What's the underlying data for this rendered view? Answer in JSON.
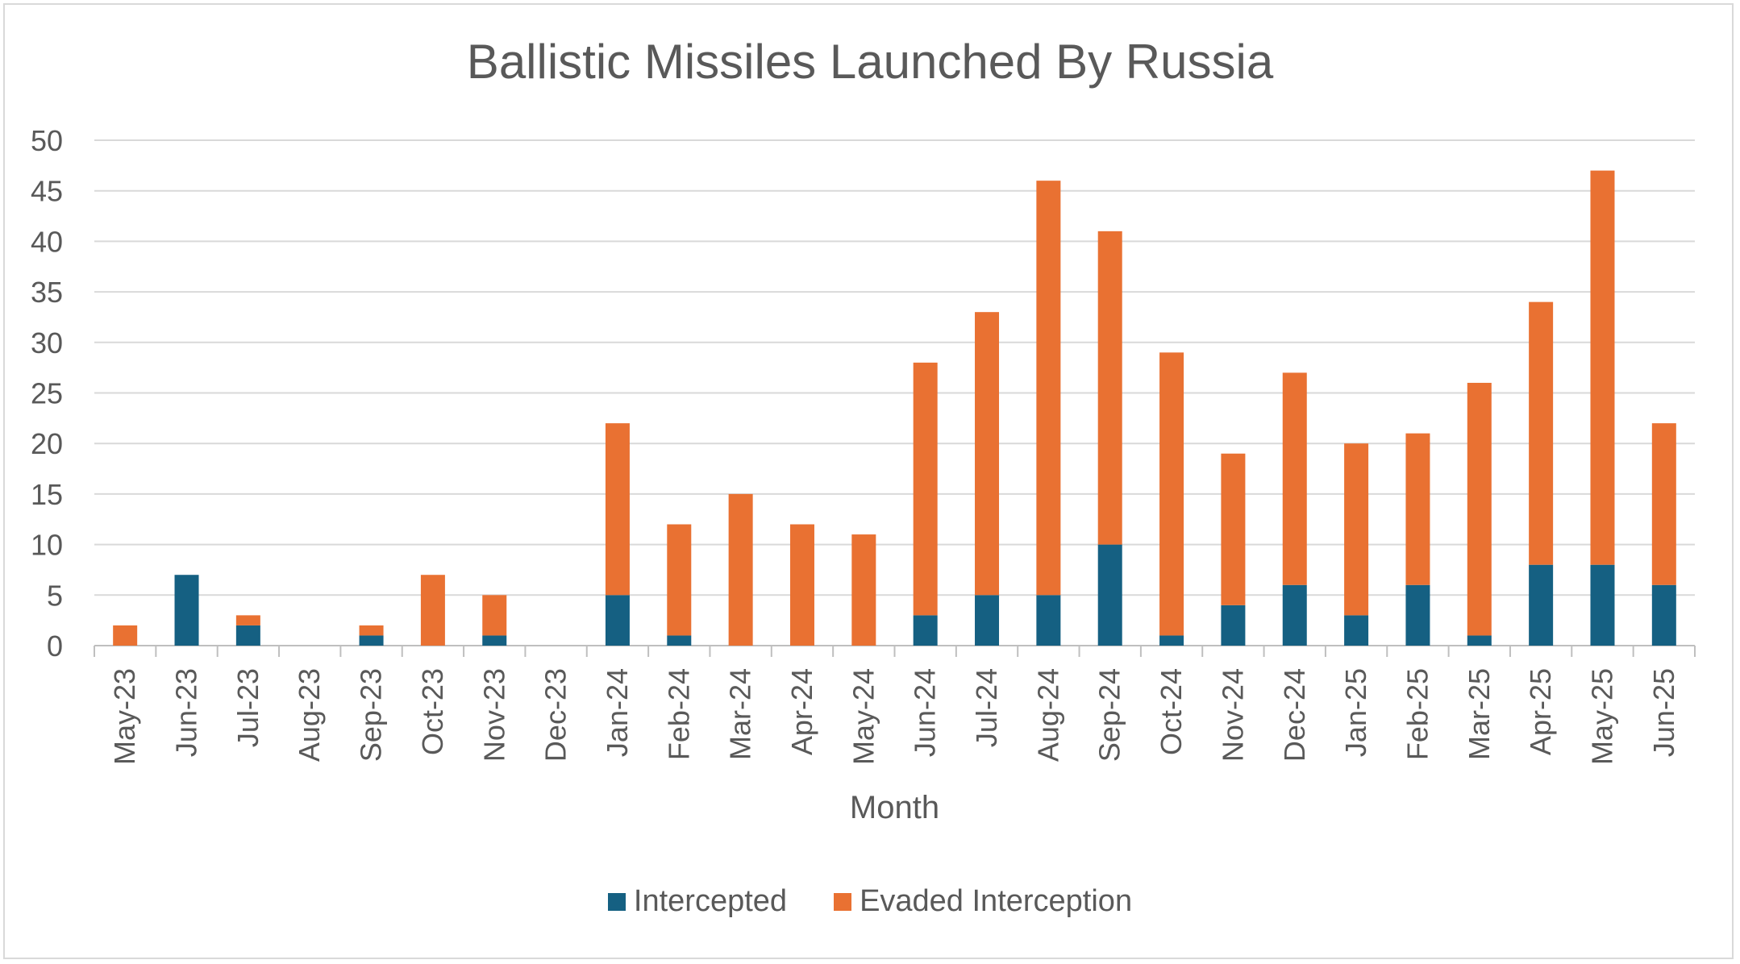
{
  "chart_data": {
    "type": "bar",
    "stacked": true,
    "title": "Ballistic Missiles Launched By Russia",
    "xlabel": "Month",
    "ylabel": "",
    "ylim": [
      0,
      50
    ],
    "yticks": [
      0,
      5,
      10,
      15,
      20,
      25,
      30,
      35,
      40,
      45,
      50
    ],
    "grid": true,
    "legend_position": "bottom",
    "categories": [
      "May-23",
      "Jun-23",
      "Jul-23",
      "Aug-23",
      "Sep-23",
      "Oct-23",
      "Nov-23",
      "Dec-23",
      "Jan-24",
      "Feb-24",
      "Mar-24",
      "Apr-24",
      "May-24",
      "Jun-24",
      "Jul-24",
      "Aug-24",
      "Sep-24",
      "Oct-24",
      "Nov-24",
      "Dec-24",
      "Jan-25",
      "Feb-25",
      "Mar-25",
      "Apr-25",
      "May-25",
      "Jun-25"
    ],
    "series": [
      {
        "name": "Intercepted",
        "color": "#156082",
        "values": [
          0,
          7,
          2,
          0,
          1,
          0,
          1,
          0,
          5,
          1,
          0,
          0,
          0,
          3,
          5,
          5,
          10,
          1,
          4,
          6,
          3,
          6,
          1,
          8,
          8,
          6
        ]
      },
      {
        "name": "Evaded Interception",
        "color": "#E97132",
        "values": [
          2,
          0,
          1,
          0,
          1,
          7,
          4,
          0,
          17,
          11,
          15,
          12,
          11,
          25,
          28,
          41,
          31,
          28,
          15,
          21,
          17,
          15,
          25,
          26,
          39,
          16
        ]
      }
    ]
  }
}
